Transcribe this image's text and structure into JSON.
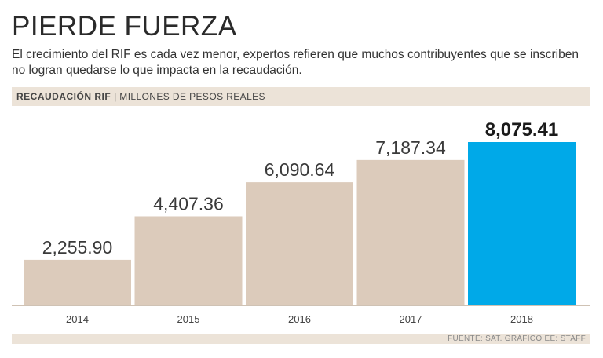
{
  "header": {
    "title": "PIERDE FUERZA",
    "subtitle": "El crecimiento del RIF es cada vez menor, expertos refieren que muchos contribuyentes que se inscriben no logran quedarse lo que impacta en la recaudación.",
    "metric_label": "RECAUDACIÓN RIF",
    "separator": "|",
    "unit_label": "MILLONES DE PESOS REALES"
  },
  "footer": {
    "source": "FUENTE: SAT. GRÁFICO EE: STAFF"
  },
  "colors": {
    "bar": "#dccbbb",
    "highlight_bar": "#00a9e8",
    "band": "#ece3d8",
    "text": "#333333"
  },
  "chart_data": {
    "type": "bar",
    "title": "PIERDE FUERZA",
    "xlabel": "",
    "ylabel": "",
    "categories": [
      "2014",
      "2015",
      "2016",
      "2017",
      "2018"
    ],
    "values": [
      2255.9,
      4407.36,
      6090.64,
      7187.34,
      8075.41
    ],
    "value_labels": [
      "2,255.90",
      "4,407.36",
      "6,090.64",
      "7,187.34",
      "8,075.41"
    ],
    "highlight_index": 4,
    "ylim": [
      0,
      8075.41
    ],
    "grid": false,
    "legend": "none"
  }
}
